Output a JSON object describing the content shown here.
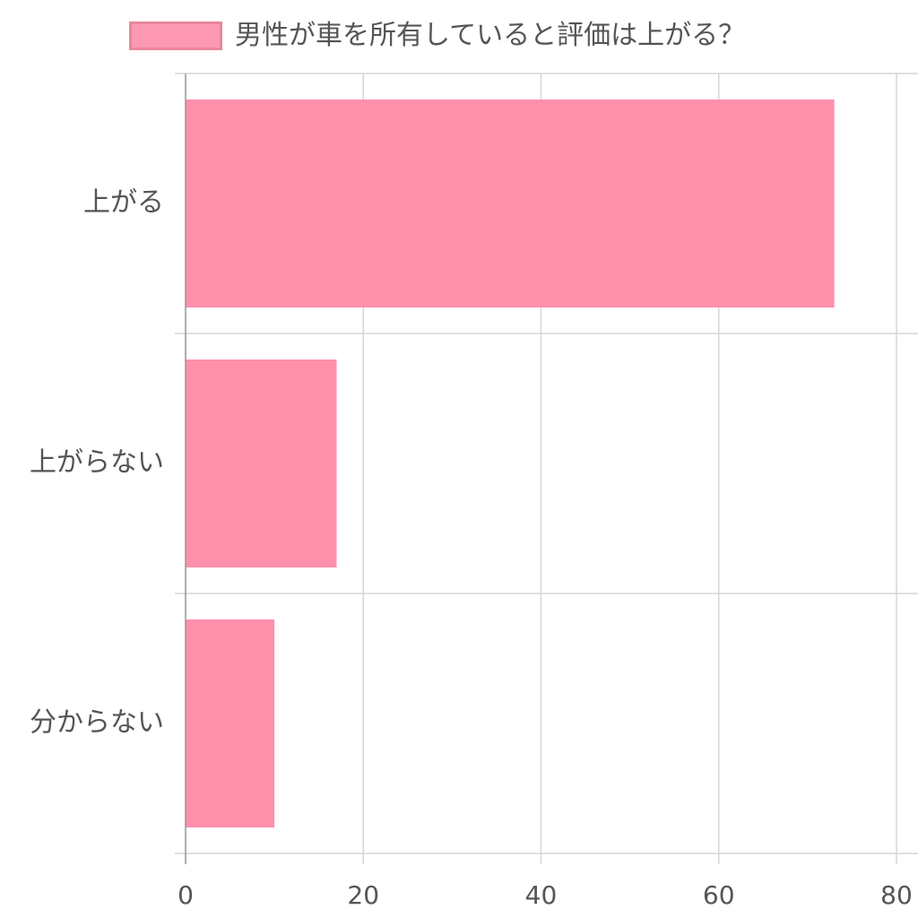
{
  "legend": {
    "label": "男性が車を所有していると評価は上がる？",
    "swatch_fill": "#ff8fab",
    "swatch_border": "#e67a94"
  },
  "chart_data": {
    "type": "bar",
    "orientation": "horizontal",
    "categories": [
      "上がる",
      "上がらない",
      "分からない"
    ],
    "series": [
      {
        "name": "男性が車を所有していると評価は上がる？",
        "values": [
          73,
          17,
          10
        ],
        "color": "#ff8fab"
      }
    ],
    "xlim": [
      0,
      80
    ],
    "x_ticks": [
      "0",
      "20",
      "40",
      "60",
      "80"
    ],
    "grid": true,
    "legend_position": "top"
  }
}
